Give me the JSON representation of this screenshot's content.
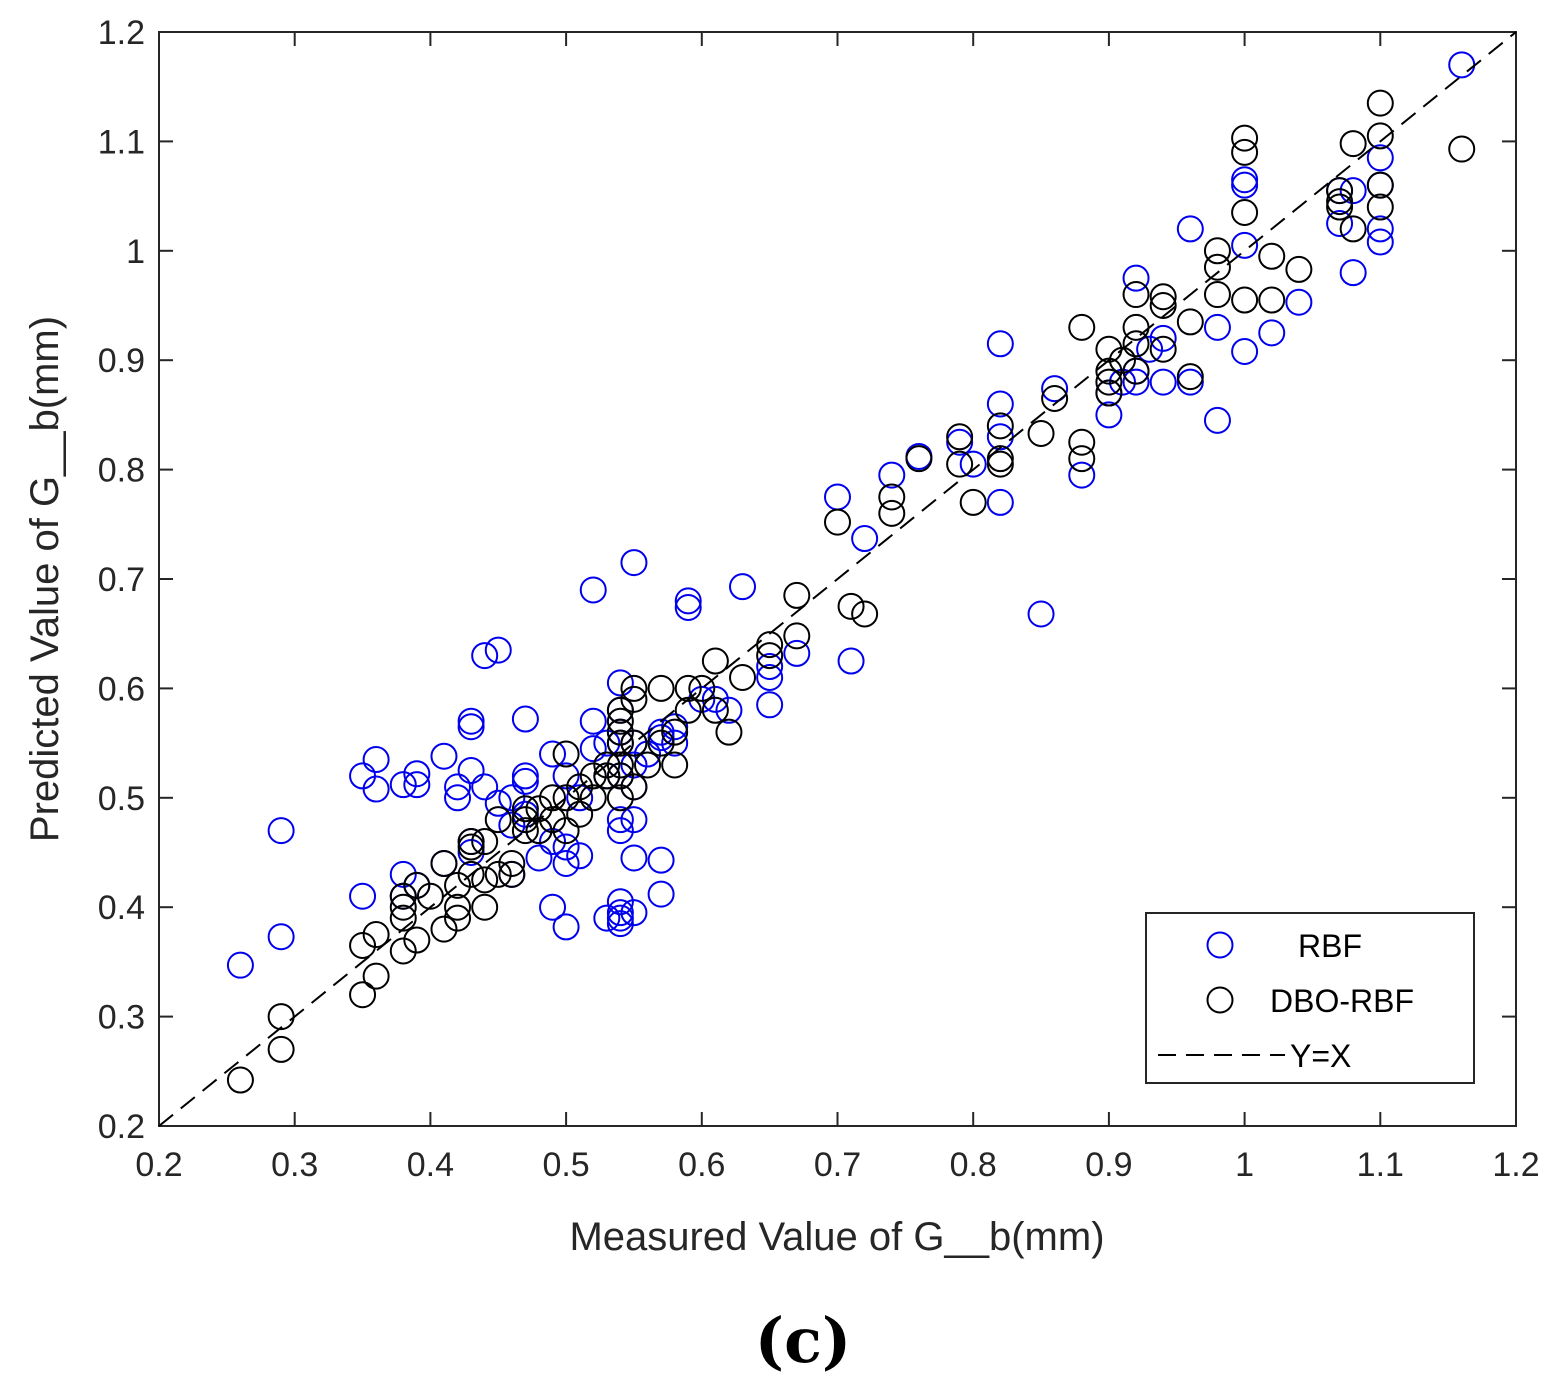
{
  "chart_data": {
    "type": "scatter",
    "title": "",
    "xlabel": "Measured Value of G__b(mm)",
    "ylabel": "Predicted Value of G__b(mm)",
    "xlim": [
      0.2,
      1.2
    ],
    "ylim": [
      0.2,
      1.2
    ],
    "x_ticks": [
      "0.2",
      "0.3",
      "0.4",
      "0.5",
      "0.6",
      "0.7",
      "0.8",
      "0.9",
      "1",
      "1.1",
      "1.2"
    ],
    "y_ticks": [
      "0.2",
      "0.3",
      "0.4",
      "0.5",
      "0.6",
      "0.7",
      "0.8",
      "0.9",
      "1",
      "1.1",
      "1.2"
    ],
    "grid": false,
    "legend_position": "bottom-right",
    "panel_label": "(c)",
    "series": [
      {
        "name": "RBF",
        "marker": "open-circle",
        "color": "#0000ee",
        "points": [
          [
            0.26,
            0.347
          ],
          [
            0.29,
            0.47
          ],
          [
            0.29,
            0.373
          ],
          [
            0.35,
            0.52
          ],
          [
            0.35,
            0.41
          ],
          [
            0.36,
            0.535
          ],
          [
            0.36,
            0.508
          ],
          [
            0.38,
            0.512
          ],
          [
            0.38,
            0.43
          ],
          [
            0.38,
            0.41
          ],
          [
            0.39,
            0.522
          ],
          [
            0.39,
            0.512
          ],
          [
            0.39,
            0.42
          ],
          [
            0.41,
            0.538
          ],
          [
            0.41,
            0.44
          ],
          [
            0.42,
            0.51
          ],
          [
            0.42,
            0.5
          ],
          [
            0.43,
            0.525
          ],
          [
            0.43,
            0.57
          ],
          [
            0.43,
            0.565
          ],
          [
            0.43,
            0.46
          ],
          [
            0.43,
            0.45
          ],
          [
            0.44,
            0.63
          ],
          [
            0.44,
            0.51
          ],
          [
            0.45,
            0.635
          ],
          [
            0.45,
            0.495
          ],
          [
            0.46,
            0.5
          ],
          [
            0.46,
            0.475
          ],
          [
            0.46,
            0.43
          ],
          [
            0.47,
            0.572
          ],
          [
            0.47,
            0.52
          ],
          [
            0.47,
            0.515
          ],
          [
            0.47,
            0.485
          ],
          [
            0.48,
            0.47
          ],
          [
            0.48,
            0.445
          ],
          [
            0.49,
            0.54
          ],
          [
            0.49,
            0.4
          ],
          [
            0.49,
            0.46
          ],
          [
            0.5,
            0.382
          ],
          [
            0.5,
            0.44
          ],
          [
            0.5,
            0.455
          ],
          [
            0.5,
            0.52
          ],
          [
            0.51,
            0.447
          ],
          [
            0.51,
            0.5
          ],
          [
            0.52,
            0.69
          ],
          [
            0.52,
            0.57
          ],
          [
            0.52,
            0.545
          ],
          [
            0.53,
            0.39
          ],
          [
            0.53,
            0.52
          ],
          [
            0.53,
            0.55
          ],
          [
            0.54,
            0.405
          ],
          [
            0.54,
            0.395
          ],
          [
            0.54,
            0.385
          ],
          [
            0.54,
            0.39
          ],
          [
            0.54,
            0.47
          ],
          [
            0.54,
            0.48
          ],
          [
            0.54,
            0.52
          ],
          [
            0.54,
            0.55
          ],
          [
            0.54,
            0.56
          ],
          [
            0.54,
            0.58
          ],
          [
            0.54,
            0.605
          ],
          [
            0.55,
            0.715
          ],
          [
            0.55,
            0.395
          ],
          [
            0.55,
            0.445
          ],
          [
            0.55,
            0.48
          ],
          [
            0.55,
            0.51
          ],
          [
            0.55,
            0.53
          ],
          [
            0.55,
            0.55
          ],
          [
            0.56,
            0.54
          ],
          [
            0.57,
            0.443
          ],
          [
            0.57,
            0.412
          ],
          [
            0.57,
            0.555
          ],
          [
            0.57,
            0.56
          ],
          [
            0.58,
            0.565
          ],
          [
            0.58,
            0.55
          ],
          [
            0.59,
            0.68
          ],
          [
            0.59,
            0.674
          ],
          [
            0.6,
            0.59
          ],
          [
            0.61,
            0.59
          ],
          [
            0.62,
            0.58
          ],
          [
            0.63,
            0.693
          ],
          [
            0.65,
            0.585
          ],
          [
            0.65,
            0.61
          ],
          [
            0.65,
            0.62
          ],
          [
            0.67,
            0.632
          ],
          [
            0.7,
            0.775
          ],
          [
            0.71,
            0.625
          ],
          [
            0.72,
            0.737
          ],
          [
            0.74,
            0.795
          ],
          [
            0.76,
            0.812
          ],
          [
            0.79,
            0.825
          ],
          [
            0.8,
            0.805
          ],
          [
            0.82,
            0.915
          ],
          [
            0.82,
            0.86
          ],
          [
            0.82,
            0.83
          ],
          [
            0.82,
            0.77
          ],
          [
            0.85,
            0.668
          ],
          [
            0.86,
            0.874
          ],
          [
            0.88,
            0.795
          ],
          [
            0.9,
            0.85
          ],
          [
            0.9,
            0.87
          ],
          [
            0.91,
            0.88
          ],
          [
            0.92,
            0.975
          ],
          [
            0.92,
            0.89
          ],
          [
            0.92,
            0.88
          ],
          [
            0.93,
            0.91
          ],
          [
            0.94,
            0.92
          ],
          [
            0.94,
            0.88
          ],
          [
            0.96,
            1.02
          ],
          [
            0.96,
            0.88
          ],
          [
            0.98,
            0.93
          ],
          [
            0.98,
            0.845
          ],
          [
            1.0,
            1.065
          ],
          [
            1.0,
            1.06
          ],
          [
            1.0,
            1.005
          ],
          [
            1.0,
            0.908
          ],
          [
            1.02,
            0.925
          ],
          [
            1.04,
            0.953
          ],
          [
            1.07,
            1.055
          ],
          [
            1.07,
            1.025
          ],
          [
            1.08,
            1.055
          ],
          [
            1.08,
            0.98
          ],
          [
            1.1,
            1.085
          ],
          [
            1.1,
            1.06
          ],
          [
            1.1,
            1.02
          ],
          [
            1.1,
            1.008
          ],
          [
            1.16,
            1.17
          ]
        ]
      },
      {
        "name": "DBO-RBF",
        "marker": "open-circle",
        "color": "#000000",
        "points": [
          [
            0.26,
            0.242
          ],
          [
            0.29,
            0.3
          ],
          [
            0.29,
            0.27
          ],
          [
            0.35,
            0.365
          ],
          [
            0.35,
            0.32
          ],
          [
            0.36,
            0.375
          ],
          [
            0.36,
            0.337
          ],
          [
            0.38,
            0.36
          ],
          [
            0.38,
            0.39
          ],
          [
            0.38,
            0.4
          ],
          [
            0.38,
            0.41
          ],
          [
            0.39,
            0.37
          ],
          [
            0.39,
            0.42
          ],
          [
            0.4,
            0.41
          ],
          [
            0.41,
            0.38
          ],
          [
            0.41,
            0.44
          ],
          [
            0.42,
            0.39
          ],
          [
            0.42,
            0.42
          ],
          [
            0.42,
            0.4
          ],
          [
            0.43,
            0.43
          ],
          [
            0.43,
            0.455
          ],
          [
            0.43,
            0.46
          ],
          [
            0.44,
            0.46
          ],
          [
            0.44,
            0.4
          ],
          [
            0.44,
            0.425
          ],
          [
            0.45,
            0.43
          ],
          [
            0.45,
            0.48
          ],
          [
            0.46,
            0.43
          ],
          [
            0.46,
            0.44
          ],
          [
            0.47,
            0.47
          ],
          [
            0.47,
            0.48
          ],
          [
            0.47,
            0.49
          ],
          [
            0.48,
            0.47
          ],
          [
            0.48,
            0.49
          ],
          [
            0.49,
            0.5
          ],
          [
            0.49,
            0.48
          ],
          [
            0.5,
            0.54
          ],
          [
            0.5,
            0.5
          ],
          [
            0.5,
            0.47
          ],
          [
            0.51,
            0.51
          ],
          [
            0.51,
            0.485
          ],
          [
            0.52,
            0.52
          ],
          [
            0.52,
            0.5
          ],
          [
            0.53,
            0.53
          ],
          [
            0.53,
            0.52
          ],
          [
            0.54,
            0.5
          ],
          [
            0.54,
            0.52
          ],
          [
            0.54,
            0.53
          ],
          [
            0.54,
            0.55
          ],
          [
            0.54,
            0.56
          ],
          [
            0.54,
            0.57
          ],
          [
            0.54,
            0.58
          ],
          [
            0.55,
            0.6
          ],
          [
            0.55,
            0.59
          ],
          [
            0.55,
            0.51
          ],
          [
            0.55,
            0.55
          ],
          [
            0.56,
            0.53
          ],
          [
            0.57,
            0.6
          ],
          [
            0.57,
            0.55
          ],
          [
            0.58,
            0.53
          ],
          [
            0.58,
            0.56
          ],
          [
            0.59,
            0.6
          ],
          [
            0.59,
            0.58
          ],
          [
            0.6,
            0.6
          ],
          [
            0.61,
            0.625
          ],
          [
            0.61,
            0.58
          ],
          [
            0.62,
            0.56
          ],
          [
            0.63,
            0.61
          ],
          [
            0.65,
            0.64
          ],
          [
            0.65,
            0.63
          ],
          [
            0.67,
            0.685
          ],
          [
            0.67,
            0.648
          ],
          [
            0.7,
            0.752
          ],
          [
            0.71,
            0.675
          ],
          [
            0.72,
            0.668
          ],
          [
            0.74,
            0.775
          ],
          [
            0.74,
            0.76
          ],
          [
            0.76,
            0.81
          ],
          [
            0.79,
            0.83
          ],
          [
            0.79,
            0.805
          ],
          [
            0.8,
            0.77
          ],
          [
            0.82,
            0.84
          ],
          [
            0.82,
            0.81
          ],
          [
            0.82,
            0.805
          ],
          [
            0.85,
            0.833
          ],
          [
            0.86,
            0.865
          ],
          [
            0.88,
            0.93
          ],
          [
            0.88,
            0.825
          ],
          [
            0.88,
            0.81
          ],
          [
            0.9,
            0.91
          ],
          [
            0.9,
            0.89
          ],
          [
            0.9,
            0.88
          ],
          [
            0.9,
            0.87
          ],
          [
            0.91,
            0.9
          ],
          [
            0.92,
            0.96
          ],
          [
            0.92,
            0.93
          ],
          [
            0.92,
            0.915
          ],
          [
            0.92,
            0.89
          ],
          [
            0.94,
            0.958
          ],
          [
            0.94,
            0.95
          ],
          [
            0.94,
            0.91
          ],
          [
            0.96,
            0.935
          ],
          [
            0.96,
            0.885
          ],
          [
            0.98,
            1.0
          ],
          [
            0.98,
            0.985
          ],
          [
            0.98,
            0.96
          ],
          [
            1.0,
            1.103
          ],
          [
            1.0,
            1.09
          ],
          [
            1.0,
            1.035
          ],
          [
            1.0,
            0.955
          ],
          [
            1.02,
            0.995
          ],
          [
            1.02,
            0.955
          ],
          [
            1.04,
            0.983
          ],
          [
            1.07,
            1.055
          ],
          [
            1.07,
            1.045
          ],
          [
            1.07,
            1.04
          ],
          [
            1.08,
            1.098
          ],
          [
            1.08,
            1.02
          ],
          [
            1.1,
            1.135
          ],
          [
            1.1,
            1.105
          ],
          [
            1.1,
            1.06
          ],
          [
            1.1,
            1.04
          ],
          [
            1.16,
            1.093
          ]
        ]
      },
      {
        "name": "Y=X",
        "line_style": "dashed",
        "color": "#000000",
        "points": [
          [
            0.2,
            0.2
          ],
          [
            1.2,
            1.2
          ]
        ]
      }
    ]
  }
}
